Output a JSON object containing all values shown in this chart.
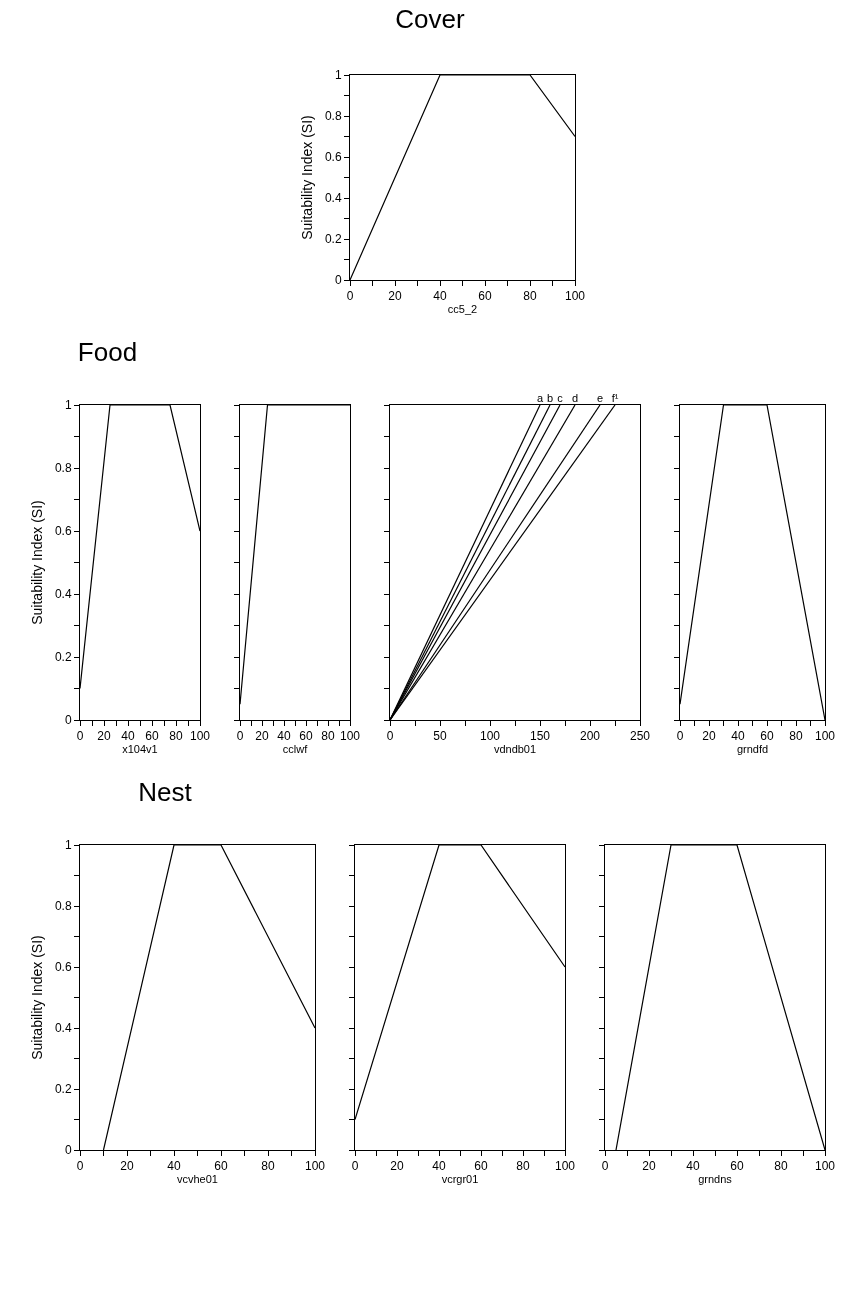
{
  "chart_data": [
    {
      "type": "line",
      "title": "Cover",
      "xlabel": "cc5_2",
      "ylabel": "Suitability Index (SI)",
      "xlim": [
        0,
        100
      ],
      "xticks": [
        0,
        {
          "value": 10,
          "label": null
        },
        20,
        {
          "value": 30,
          "label": null
        },
        40,
        {
          "value": 50,
          "label": null
        },
        60,
        {
          "value": 70,
          "label": null
        },
        80,
        {
          "value": 90,
          "label": null
        },
        100
      ],
      "ylim": [
        0,
        1
      ],
      "yticks": [
        0,
        {
          "value": 0.1,
          "label": null
        },
        0.2,
        {
          "value": 0.3,
          "label": null
        },
        0.4,
        {
          "value": 0.5,
          "label": null
        },
        0.6,
        {
          "value": 0.7,
          "label": null
        },
        0.8,
        {
          "value": 0.9,
          "label": null
        },
        1
      ],
      "series": [
        {
          "color": "#000000",
          "x": [
            0,
            40,
            80,
            100
          ],
          "values": [
            0,
            1,
            1,
            0.7
          ]
        }
      ]
    },
    {
      "type": "line",
      "title": "Food",
      "xlabel": "x104v1",
      "ylabel": "Suitability Index (SI)",
      "xlim": [
        0,
        100
      ],
      "xticks": [
        0,
        {
          "value": 10,
          "label": null
        },
        20,
        {
          "value": 30,
          "label": null
        },
        40,
        {
          "value": 50,
          "label": null
        },
        60,
        {
          "value": 70,
          "label": null
        },
        80,
        {
          "value": 90,
          "label": null
        },
        100
      ],
      "ylim": [
        0,
        1
      ],
      "yticks": [
        0,
        {
          "value": 0.1,
          "label": null
        },
        0.2,
        {
          "value": 0.3,
          "label": null
        },
        0.4,
        {
          "value": 0.5,
          "label": null
        },
        0.6,
        {
          "value": 0.7,
          "label": null
        },
        0.8,
        {
          "value": 0.9,
          "label": null
        },
        1
      ],
      "series": [
        {
          "color": "#000000",
          "x": [
            0,
            25,
            75,
            100
          ],
          "values": [
            0.1,
            1,
            1,
            0.6
          ]
        }
      ]
    },
    {
      "type": "line",
      "xlabel": "cclwf",
      "tick_labels": "x",
      "xlim": [
        0,
        100
      ],
      "xticks": [
        0,
        {
          "value": 10,
          "label": null
        },
        20,
        {
          "value": 30,
          "label": null
        },
        40,
        {
          "value": 50,
          "label": null
        },
        60,
        {
          "value": 70,
          "label": null
        },
        80,
        {
          "value": 90,
          "label": null
        },
        100
      ],
      "ylim": [
        0,
        1
      ],
      "yticks": [
        0,
        {
          "value": 0.1,
          "label": null
        },
        0.2,
        {
          "value": 0.3,
          "label": null
        },
        0.4,
        {
          "value": 0.5,
          "label": null
        },
        0.6,
        {
          "value": 0.7,
          "label": null
        },
        0.8,
        {
          "value": 0.9,
          "label": null
        },
        1
      ],
      "series": [
        {
          "color": "#000000",
          "x": [
            0,
            25,
            100
          ],
          "values": [
            0.05,
            1,
            1
          ]
        }
      ]
    },
    {
      "type": "line",
      "xlabel": "vdndb01",
      "tick_labels": "x",
      "xlim": [
        0,
        250
      ],
      "xticks": [
        0,
        {
          "value": 25,
          "label": null
        },
        50,
        {
          "value": 75,
          "label": null
        },
        100,
        {
          "value": 125,
          "label": null
        },
        150,
        {
          "value": 175,
          "label": null
        },
        200,
        {
          "value": 225,
          "label": null
        },
        250
      ],
      "ylim": [
        0,
        1
      ],
      "yticks": [
        0,
        {
          "value": 0.1,
          "label": null
        },
        0.2,
        {
          "value": 0.3,
          "label": null
        },
        0.4,
        {
          "value": 0.5,
          "label": null
        },
        0.6,
        {
          "value": 0.7,
          "label": null
        },
        0.8,
        {
          "value": 0.9,
          "label": null
        },
        1
      ],
      "series": [
        {
          "name": "a",
          "color": "#000000",
          "x": [
            0,
            150
          ],
          "values": [
            0,
            1
          ]
        },
        {
          "name": "b",
          "color": "#000000",
          "x": [
            0,
            160
          ],
          "values": [
            0,
            1
          ]
        },
        {
          "name": "c",
          "color": "#000000",
          "x": [
            0,
            170
          ],
          "values": [
            0,
            1
          ]
        },
        {
          "name": "d",
          "color": "#000000",
          "x": [
            0,
            185
          ],
          "values": [
            0,
            1
          ]
        },
        {
          "name": "e",
          "color": "#000000",
          "x": [
            0,
            210
          ],
          "values": [
            0,
            1
          ]
        },
        {
          "name": "f¹",
          "color": "#000000",
          "x": [
            0,
            225
          ],
          "values": [
            0,
            1
          ]
        }
      ]
    },
    {
      "type": "line",
      "xlabel": "grndfd",
      "tick_labels": "x",
      "xlim": [
        0,
        100
      ],
      "xticks": [
        0,
        {
          "value": 10,
          "label": null
        },
        20,
        {
          "value": 30,
          "label": null
        },
        40,
        {
          "value": 50,
          "label": null
        },
        60,
        {
          "value": 70,
          "label": null
        },
        80,
        {
          "value": 90,
          "label": null
        },
        100
      ],
      "ylim": [
        0,
        1
      ],
      "yticks": [
        0,
        {
          "value": 0.1,
          "label": null
        },
        0.2,
        {
          "value": 0.3,
          "label": null
        },
        0.4,
        {
          "value": 0.5,
          "label": null
        },
        0.6,
        {
          "value": 0.7,
          "label": null
        },
        0.8,
        {
          "value": 0.9,
          "label": null
        },
        1
      ],
      "series": [
        {
          "color": "#000000",
          "x": [
            0,
            30,
            60,
            100
          ],
          "values": [
            0.05,
            1,
            1,
            0
          ]
        }
      ]
    },
    {
      "type": "line",
      "title": "Nest",
      "xlabel": "vcvhe01",
      "ylabel": "Suitability Index (SI)",
      "xlim": [
        0,
        100
      ],
      "xticks": [
        0,
        {
          "value": 10,
          "label": null
        },
        20,
        {
          "value": 30,
          "label": null
        },
        40,
        {
          "value": 50,
          "label": null
        },
        60,
        {
          "value": 70,
          "label": null
        },
        80,
        {
          "value": 90,
          "label": null
        },
        100
      ],
      "ylim": [
        0,
        1
      ],
      "yticks": [
        0,
        {
          "value": 0.1,
          "label": null
        },
        0.2,
        {
          "value": 0.3,
          "label": null
        },
        0.4,
        {
          "value": 0.5,
          "label": null
        },
        0.6,
        {
          "value": 0.7,
          "label": null
        },
        0.8,
        {
          "value": 0.9,
          "label": null
        },
        1
      ],
      "series": [
        {
          "color": "#000000",
          "x": [
            10,
            40,
            60,
            100
          ],
          "values": [
            0,
            1,
            1,
            0.4
          ]
        }
      ]
    },
    {
      "type": "line",
      "xlabel": "vcrgr01",
      "tick_labels": "x",
      "xlim": [
        0,
        100
      ],
      "xticks": [
        0,
        {
          "value": 10,
          "label": null
        },
        20,
        {
          "value": 30,
          "label": null
        },
        40,
        {
          "value": 50,
          "label": null
        },
        60,
        {
          "value": 70,
          "label": null
        },
        80,
        {
          "value": 90,
          "label": null
        },
        100
      ],
      "ylim": [
        0,
        1
      ],
      "yticks": [
        0,
        {
          "value": 0.1,
          "label": null
        },
        0.2,
        {
          "value": 0.3,
          "label": null
        },
        0.4,
        {
          "value": 0.5,
          "label": null
        },
        0.6,
        {
          "value": 0.7,
          "label": null
        },
        0.8,
        {
          "value": 0.9,
          "label": null
        },
        1
      ],
      "series": [
        {
          "color": "#000000",
          "x": [
            0,
            40,
            60,
            100
          ],
          "values": [
            0.1,
            1,
            1,
            0.6
          ]
        }
      ]
    },
    {
      "type": "line",
      "xlabel": "grndns",
      "tick_labels": "x",
      "xlim": [
        0,
        100
      ],
      "xticks": [
        0,
        {
          "value": 10,
          "label": null
        },
        20,
        {
          "value": 30,
          "label": null
        },
        40,
        {
          "value": 50,
          "label": null
        },
        60,
        {
          "value": 70,
          "label": null
        },
        80,
        {
          "value": 90,
          "label": null
        },
        100
      ],
      "ylim": [
        0,
        1
      ],
      "yticks": [
        0,
        {
          "value": 0.1,
          "label": null
        },
        0.2,
        {
          "value": 0.3,
          "label": null
        },
        0.4,
        {
          "value": 0.5,
          "label": null
        },
        0.6,
        {
          "value": 0.7,
          "label": null
        },
        0.8,
        {
          "value": 0.9,
          "label": null
        },
        1
      ],
      "series": [
        {
          "color": "#000000",
          "x": [
            5,
            30,
            60,
            100
          ],
          "values": [
            0,
            1,
            1,
            0
          ]
        }
      ]
    }
  ]
}
